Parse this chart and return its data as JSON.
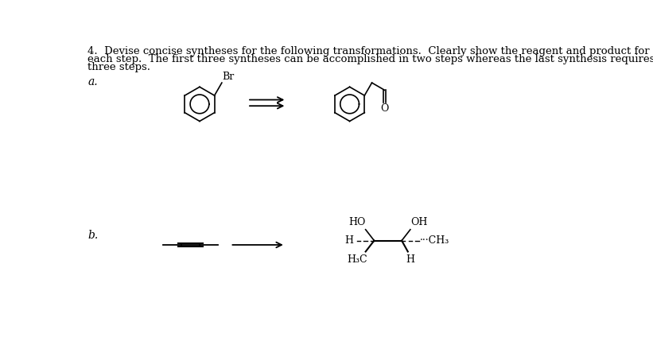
{
  "title_line1": "4.  Devise concise syntheses for the following transformations.  Clearly show the reagent and product for",
  "title_line2": "each step.  The first three syntheses can be accomplished in two steps whereas the last synthesis requires",
  "title_line3": "three steps.",
  "label_a": "a.",
  "label_b": "b.",
  "bg_color": "#ffffff",
  "text_color": "#000000",
  "font_size_title": 9.5,
  "font_size_label": 10,
  "font_size_chem": 9
}
